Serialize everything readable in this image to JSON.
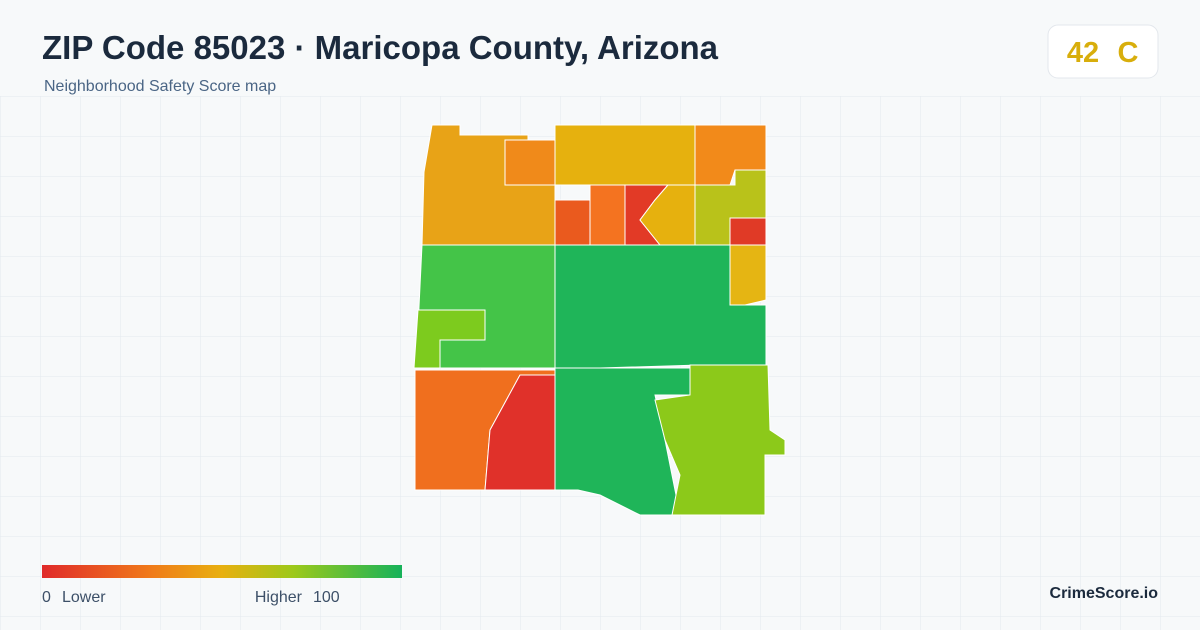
{
  "header": {
    "title": "ZIP Code 85023 · Maricopa County, Arizona",
    "subtitle": "Neighborhood Safety Score map"
  },
  "score": {
    "value": 42,
    "grade": "C"
  },
  "legend": {
    "min": 0,
    "min_label": "Lower",
    "max_label": "Higher",
    "max": 100
  },
  "brand": "CrimeScore.io"
}
